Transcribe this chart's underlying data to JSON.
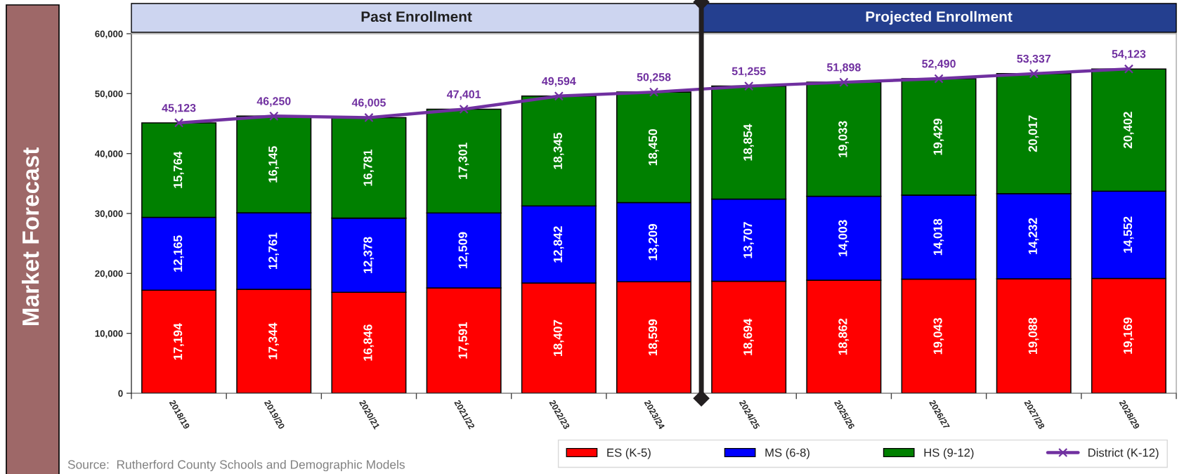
{
  "chart_data": {
    "type": "bar",
    "title": "Market Forecast",
    "categories": [
      "2018/19",
      "2019/20",
      "2020/21",
      "2021/22",
      "2022/23",
      "2023/24",
      "2024/25",
      "2025/26",
      "2026/27",
      "2027/28",
      "2028/29"
    ],
    "stacked": true,
    "series": [
      {
        "name": "ES (K-5)",
        "color": "#ff0000",
        "values": [
          17194,
          17344,
          16846,
          17591,
          18407,
          18599,
          18694,
          18862,
          19043,
          19088,
          19169
        ],
        "value_labels": [
          "17,194",
          "17,344",
          "16,846",
          "17,591",
          "18,407",
          "18,599",
          "18,694",
          "18,862",
          "19,043",
          "19,088",
          "19,169"
        ]
      },
      {
        "name": "MS (6-8)",
        "color": "#0000ff",
        "values": [
          12165,
          12761,
          12378,
          12509,
          12842,
          13209,
          13707,
          14003,
          14018,
          14232,
          14552
        ],
        "value_labels": [
          "12,165",
          "12,761",
          "12,378",
          "12,509",
          "12,842",
          "13,209",
          "13,707",
          "14,003",
          "14,018",
          "14,232",
          "14,552"
        ]
      },
      {
        "name": "HS (9-12)",
        "color": "#008000",
        "values": [
          15764,
          16145,
          16781,
          17301,
          18345,
          18450,
          18854,
          19033,
          19429,
          20017,
          20402
        ],
        "value_labels": [
          "15,764",
          "16,145",
          "16,781",
          "17,301",
          "18,345",
          "18,450",
          "18,854",
          "19,033",
          "19,429",
          "20,017",
          "20,402"
        ]
      },
      {
        "name": "District (K-12)",
        "type": "line",
        "color": "#7030a0",
        "values": [
          45123,
          46250,
          46005,
          47401,
          49594,
          50258,
          51255,
          51898,
          52490,
          53337,
          54123
        ],
        "value_labels": [
          "45,123",
          "46,250",
          "46,005",
          "47,401",
          "49,594",
          "50,258",
          "51,255",
          "51,898",
          "52,490",
          "53,337",
          "54,123"
        ]
      }
    ],
    "ylim": [
      0,
      60000
    ],
    "yticks": [
      0,
      {
        "value": 10000,
        "label": "10,000"
      },
      {
        "value": 20000,
        "label": "20,000"
      },
      {
        "value": 30000,
        "label": "30,000"
      },
      {
        "value": 40000,
        "label": "40,000"
      },
      {
        "value": 50000,
        "label": "50,000"
      },
      {
        "value": 60000,
        "label": "60,000"
      }
    ],
    "marker": "cross",
    "legend": "bottom right",
    "grid": false,
    "annotations": [
      "Past Enrollment",
      "Projected Enrollment",
      "Source:  Rutherford County Schools and Demographic Models"
    ]
  }
}
